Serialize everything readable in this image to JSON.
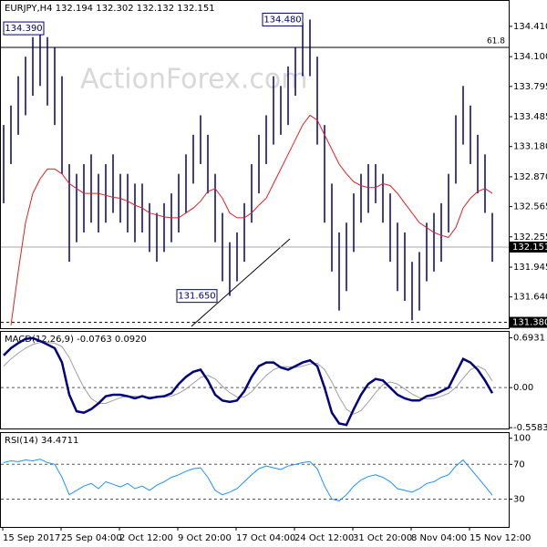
{
  "chart_data": [
    {
      "type": "price-range",
      "title": "EURJPY,H4  132.194 132.302 132.132 132.151",
      "watermark": "ActionForex.com",
      "color": "#000080",
      "high": [
        133.4,
        133.6,
        133.9,
        134.1,
        134.3,
        134.39,
        134.3,
        134.2,
        133.9,
        133.0,
        132.9,
        133.0,
        133.1,
        132.9,
        133.0,
        133.1,
        132.9,
        132.9,
        132.8,
        132.8,
        132.6,
        132.5,
        132.6,
        132.7,
        132.9,
        133.1,
        133.3,
        133.5,
        133.3,
        132.9,
        132.5,
        132.2,
        132.3,
        132.6,
        133.0,
        133.3,
        133.5,
        133.9,
        133.8,
        134.0,
        134.2,
        134.45,
        134.48,
        134.1,
        133.4,
        132.8,
        132.3,
        132.4,
        132.7,
        132.9,
        133.0,
        133.0,
        132.9,
        132.7,
        132.4,
        132.3,
        132.0,
        132.1,
        132.4,
        132.5,
        132.6,
        132.9,
        133.5,
        133.8,
        133.6,
        133.3,
        133.1,
        132.5
      ],
      "low": [
        132.6,
        133.0,
        133.3,
        133.5,
        133.7,
        133.8,
        133.6,
        133.4,
        132.9,
        132.0,
        132.2,
        132.3,
        132.4,
        132.3,
        132.4,
        132.5,
        132.4,
        132.3,
        132.2,
        132.3,
        132.1,
        132.0,
        132.1,
        132.2,
        132.3,
        132.5,
        132.8,
        133.0,
        132.7,
        132.2,
        131.8,
        131.65,
        131.8,
        132.0,
        132.4,
        132.7,
        133.0,
        133.2,
        133.3,
        133.4,
        133.7,
        133.9,
        133.9,
        133.2,
        132.4,
        131.9,
        131.5,
        131.7,
        132.1,
        132.4,
        132.5,
        132.6,
        132.4,
        132.0,
        131.7,
        131.6,
        131.4,
        131.5,
        131.8,
        131.9,
        132.0,
        132.3,
        132.8,
        133.2,
        133.0,
        132.7,
        132.5,
        132.0
      ],
      "ma": {
        "color": "#e02020",
        "values": [
          null,
          131.35,
          131.9,
          132.4,
          132.7,
          132.85,
          132.95,
          132.95,
          132.9,
          132.8,
          132.75,
          132.7,
          132.7,
          132.7,
          132.68,
          132.66,
          132.65,
          132.62,
          132.58,
          132.55,
          132.5,
          132.48,
          132.46,
          132.45,
          132.45,
          132.5,
          132.55,
          132.62,
          132.72,
          132.75,
          132.65,
          132.5,
          132.45,
          132.45,
          132.5,
          132.58,
          132.65,
          132.8,
          132.95,
          133.1,
          133.25,
          133.4,
          133.5,
          133.45,
          133.3,
          133.15,
          133.0,
          132.9,
          132.82,
          132.78,
          132.76,
          132.76,
          132.8,
          132.78,
          132.7,
          132.6,
          132.5,
          132.4,
          132.35,
          132.3,
          132.27,
          132.25,
          132.35,
          132.55,
          132.65,
          132.72,
          132.75,
          132.7
        ]
      },
      "ylim": [
        131.32,
        134.68
      ],
      "yticks": [
        {
          "value": 134.41,
          "label": "134.410"
        },
        {
          "value": 134.1,
          "label": "134.100"
        },
        {
          "value": 133.795,
          "label": "133.795"
        },
        {
          "value": 133.485,
          "label": "133.485"
        },
        {
          "value": 133.18,
          "label": "133.180"
        },
        {
          "value": 132.87,
          "label": "132.870"
        },
        {
          "value": 132.565,
          "label": "132.565"
        },
        {
          "value": 132.255,
          "label": "132.255"
        },
        {
          "value": 131.945,
          "label": "131.945"
        },
        {
          "value": 131.64,
          "label": "131.640"
        }
      ],
      "fib_level": {
        "ratio": 61.8,
        "price": 134.195
      },
      "last_price": 132.151,
      "support": {
        "value": 131.38,
        "label": "131.380"
      },
      "annotations": [
        {
          "value": 134.39,
          "label": "134.390"
        },
        {
          "value": 134.48,
          "label": "134.480"
        },
        {
          "value": 131.65,
          "label": "131.650"
        }
      ]
    },
    {
      "type": "line",
      "title": "MACD(12,26,9) -0.0763 0.0920",
      "series": [
        {
          "color": "#000080",
          "values": [
            0.45,
            0.55,
            0.62,
            0.68,
            0.69,
            0.65,
            0.6,
            0.55,
            0.35,
            -0.1,
            -0.33,
            -0.35,
            -0.3,
            -0.22,
            -0.12,
            -0.1,
            -0.1,
            -0.12,
            -0.15,
            -0.12,
            -0.15,
            -0.13,
            -0.12,
            -0.08,
            0.05,
            0.15,
            0.22,
            0.25,
            0.1,
            -0.1,
            -0.18,
            -0.2,
            -0.18,
            -0.05,
            0.15,
            0.3,
            0.35,
            0.35,
            0.28,
            0.25,
            0.3,
            0.35,
            0.38,
            0.3,
            0.0,
            -0.35,
            -0.5,
            -0.52,
            -0.3,
            -0.1,
            0.05,
            0.12,
            0.1,
            0.0,
            -0.1,
            -0.15,
            -0.18,
            -0.18,
            -0.12,
            -0.1,
            -0.05,
            0.0,
            0.2,
            0.4,
            0.35,
            0.25,
            0.1,
            -0.0763
          ]
        },
        {
          "color": "#a0a0a0",
          "values": [
            0.3,
            0.4,
            0.48,
            0.55,
            0.6,
            0.63,
            0.63,
            0.62,
            0.57,
            0.42,
            0.2,
            0.0,
            -0.15,
            -0.22,
            -0.22,
            -0.18,
            -0.14,
            -0.12,
            -0.12,
            -0.13,
            -0.13,
            -0.13,
            -0.13,
            -0.12,
            -0.08,
            -0.02,
            0.06,
            0.14,
            0.17,
            0.12,
            0.02,
            -0.07,
            -0.13,
            -0.13,
            -0.06,
            0.06,
            0.17,
            0.25,
            0.29,
            0.29,
            0.28,
            0.3,
            0.33,
            0.34,
            0.25,
            0.08,
            -0.13,
            -0.3,
            -0.37,
            -0.32,
            -0.2,
            -0.07,
            0.04,
            0.08,
            0.05,
            -0.02,
            -0.09,
            -0.14,
            -0.16,
            -0.15,
            -0.12,
            -0.08,
            0.0,
            0.13,
            0.25,
            0.3,
            0.25,
            0.092
          ]
        }
      ],
      "ylim": [
        -0.57,
        0.79
      ],
      "yticks": [
        0.6931,
        {
          "value": 0,
          "label": "0.00"
        },
        -0.5583
      ]
    },
    {
      "type": "line",
      "title": "RSI(14) 34.4711",
      "series": [
        {
          "color": "#1e90ff",
          "values": [
            72,
            74,
            73,
            75,
            74,
            76,
            72,
            70,
            55,
            35,
            40,
            45,
            48,
            42,
            50,
            47,
            44,
            48,
            42,
            45,
            40,
            46,
            50,
            55,
            58,
            62,
            65,
            66,
            55,
            40,
            35,
            38,
            42,
            50,
            58,
            65,
            68,
            66,
            64,
            68,
            70,
            72,
            73,
            65,
            45,
            30,
            28,
            35,
            45,
            52,
            56,
            58,
            55,
            50,
            42,
            40,
            38,
            42,
            48,
            50,
            55,
            58,
            68,
            75,
            65,
            55,
            45,
            34.4711
          ]
        }
      ],
      "ylim": [
        -2,
        107
      ],
      "yticks": [
        100,
        70,
        30
      ],
      "categories": [
        "15 Sep 2017",
        null,
        null,
        null,
        null,
        null,
        null,
        null,
        "25 Sep 04:00",
        null,
        null,
        null,
        null,
        null,
        null,
        null,
        "2 Oct 12:00",
        null,
        null,
        null,
        null,
        null,
        null,
        null,
        "9 Oct 20:00",
        null,
        null,
        null,
        null,
        null,
        null,
        null,
        "17 Oct 04:00",
        null,
        null,
        null,
        null,
        null,
        null,
        null,
        "24 Oct 12:00",
        null,
        null,
        null,
        null,
        null,
        null,
        null,
        "31 Oct 20:00",
        null,
        null,
        null,
        null,
        null,
        null,
        null,
        "8 Nov 04:00",
        null,
        null,
        null,
        null,
        null,
        null,
        null,
        "15 Nov 12:00",
        null,
        null,
        null
      ]
    }
  ]
}
